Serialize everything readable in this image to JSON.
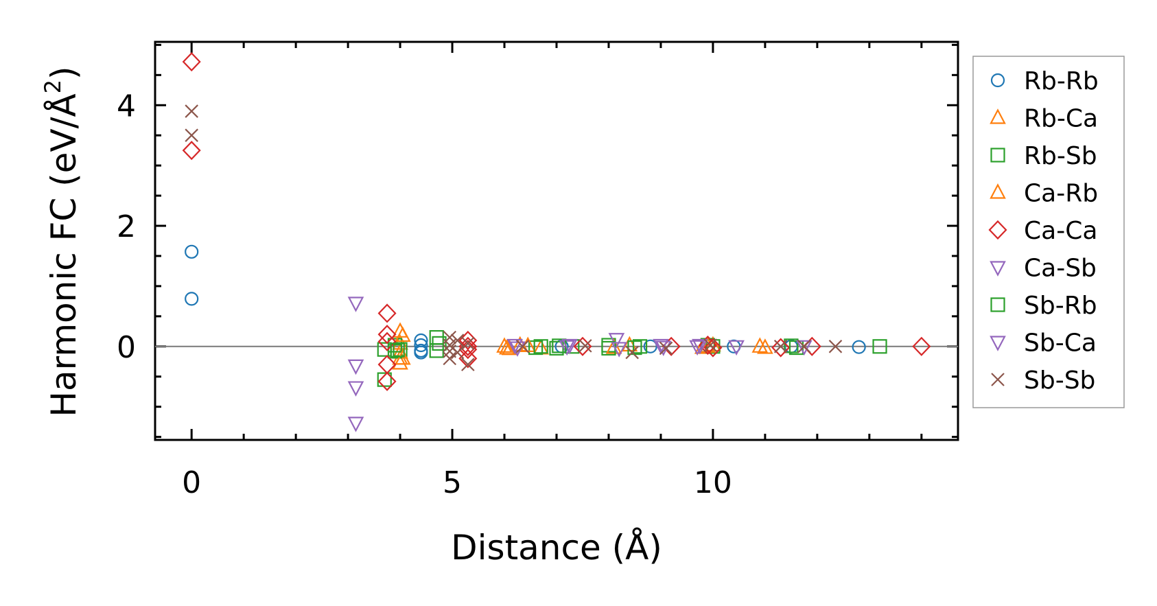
{
  "chart_data": {
    "type": "scatter",
    "title": "",
    "xlabel": "Distance (Å)",
    "ylabel_main": "Harmonic FC (eV/Å",
    "ylabel_sup": "2",
    "ylabel_close": ")",
    "xlim": [
      -0.7,
      14.7
    ],
    "ylim": [
      -1.55,
      5.05
    ],
    "xticks": [
      0,
      5,
      10
    ],
    "xtick_labels": [
      "0",
      "5",
      "10"
    ],
    "yticks": [
      0,
      2,
      4
    ],
    "ytick_labels": [
      "0",
      "2",
      "4"
    ],
    "zero_line": true,
    "legend_position": "outside-right",
    "series": [
      {
        "name": "Rb-Rb",
        "marker": "circle",
        "color": "#1f77b4",
        "points": [
          [
            0,
            1.57
          ],
          [
            0,
            0.79
          ],
          [
            4.4,
            0.1
          ],
          [
            4.4,
            0.02
          ],
          [
            4.4,
            -0.07
          ],
          [
            4.4,
            -0.1
          ],
          [
            7.1,
            0.0
          ],
          [
            8.8,
            0.0
          ],
          [
            10.4,
            0.0
          ],
          [
            11.5,
            0.0
          ],
          [
            12.8,
            -0.01
          ]
        ]
      },
      {
        "name": "Rb-Ca",
        "marker": "triangle-up",
        "color": "#ff7f0e",
        "points": [
          [
            4.0,
            0.25
          ],
          [
            4.0,
            0.05
          ],
          [
            4.0,
            -0.1
          ],
          [
            4.0,
            -0.2
          ],
          [
            4.0,
            -0.28
          ],
          [
            6.0,
            0.0
          ],
          [
            6.1,
            -0.04
          ],
          [
            6.3,
            0.02
          ],
          [
            6.7,
            -0.03
          ],
          [
            8.4,
            0.02
          ],
          [
            9.8,
            -0.02
          ],
          [
            10.0,
            0.02
          ],
          [
            10.9,
            0.0
          ]
        ]
      },
      {
        "name": "Rb-Sb",
        "marker": "square",
        "color": "#2ca02c",
        "points": [
          [
            3.7,
            -0.55
          ],
          [
            3.7,
            -0.05
          ],
          [
            3.9,
            0.02
          ],
          [
            3.9,
            -0.08
          ],
          [
            4.0,
            -0.05
          ],
          [
            4.7,
            0.15
          ],
          [
            4.7,
            -0.07
          ],
          [
            6.6,
            -0.02
          ],
          [
            7.0,
            -0.03
          ],
          [
            7.3,
            0.0
          ],
          [
            8.0,
            0.02
          ],
          [
            8.5,
            -0.02
          ],
          [
            9.9,
            0.02
          ],
          [
            10.0,
            0.0
          ],
          [
            11.5,
            0.01
          ],
          [
            13.2,
            0.0
          ]
        ]
      },
      {
        "name": "Ca-Rb",
        "marker": "triangle-up",
        "color": "#ff7f0e",
        "points": [
          [
            4.05,
            0.18
          ],
          [
            4.05,
            -0.2
          ],
          [
            6.05,
            -0.03
          ],
          [
            6.45,
            0.01
          ],
          [
            8.1,
            -0.02
          ],
          [
            9.9,
            0.0
          ],
          [
            11.0,
            -0.02
          ]
        ]
      },
      {
        "name": "Ca-Ca",
        "marker": "diamond",
        "color": "#d62728",
        "points": [
          [
            0,
            4.72
          ],
          [
            0,
            3.25
          ],
          [
            3.75,
            0.55
          ],
          [
            3.75,
            0.2
          ],
          [
            3.75,
            0.08
          ],
          [
            3.75,
            -0.3
          ],
          [
            3.75,
            -0.58
          ],
          [
            5.3,
            0.1
          ],
          [
            5.3,
            0.0
          ],
          [
            5.3,
            -0.05
          ],
          [
            5.3,
            -0.2
          ],
          [
            7.5,
            0.0
          ],
          [
            9.2,
            0.0
          ],
          [
            9.9,
            0.02
          ],
          [
            10.0,
            -0.02
          ],
          [
            11.3,
            -0.02
          ],
          [
            11.9,
            0.0
          ],
          [
            14.0,
            0.0
          ]
        ]
      },
      {
        "name": "Ca-Sb",
        "marker": "triangle-down",
        "color": "#9467bd",
        "points": [
          [
            3.15,
            0.72
          ],
          [
            3.15,
            -0.32
          ],
          [
            3.15,
            -0.68
          ],
          [
            3.15,
            -1.27
          ],
          [
            6.2,
            0.02
          ],
          [
            7.2,
            0.0
          ],
          [
            8.15,
            0.12
          ],
          [
            9.0,
            0.02
          ],
          [
            9.7,
            0.0
          ],
          [
            10.45,
            0.0
          ]
        ]
      },
      {
        "name": "Sb-Rb",
        "marker": "square",
        "color": "#2ca02c",
        "points": [
          [
            3.95,
            -0.06
          ],
          [
            4.75,
            0.05
          ],
          [
            6.7,
            0.0
          ],
          [
            7.05,
            0.01
          ],
          [
            8.0,
            -0.03
          ],
          [
            8.6,
            0.0
          ],
          [
            11.6,
            -0.02
          ]
        ]
      },
      {
        "name": "Sb-Ca",
        "marker": "triangle-down",
        "color": "#9467bd",
        "points": [
          [
            6.25,
            -0.02
          ],
          [
            7.25,
            0.02
          ],
          [
            8.2,
            -0.03
          ],
          [
            9.05,
            -0.01
          ],
          [
            9.75,
            0.02
          ],
          [
            11.75,
            0.0
          ]
        ]
      },
      {
        "name": "Sb-Sb",
        "marker": "x",
        "color": "#8c564b",
        "points": [
          [
            0,
            3.9
          ],
          [
            0,
            3.5
          ],
          [
            4.95,
            0.15
          ],
          [
            4.95,
            0.02
          ],
          [
            4.95,
            -0.08
          ],
          [
            4.95,
            -0.2
          ],
          [
            5.1,
            0.1
          ],
          [
            5.1,
            -0.1
          ],
          [
            5.3,
            0.05
          ],
          [
            5.3,
            -0.3
          ],
          [
            6.35,
            0.0
          ],
          [
            7.55,
            0.01
          ],
          [
            8.45,
            -0.1
          ],
          [
            9.1,
            -0.03
          ],
          [
            9.95,
            0.02
          ],
          [
            11.3,
            0.0
          ],
          [
            11.75,
            0.0
          ],
          [
            12.35,
            0.0
          ]
        ]
      }
    ]
  }
}
